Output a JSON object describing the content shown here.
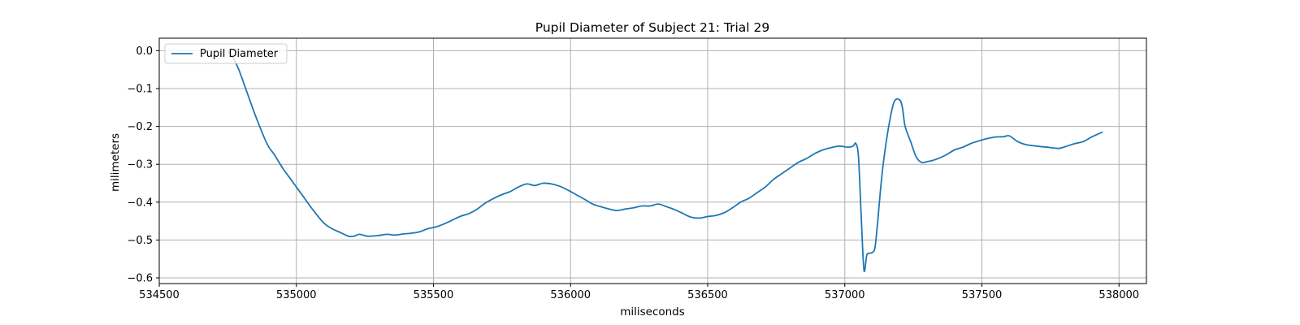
{
  "chart_data": {
    "type": "line",
    "title": "Pupil Diameter of Subject 21: Trial 29",
    "xlabel": "miliseconds",
    "ylabel": "milimeters",
    "xlim": [
      534500,
      538100
    ],
    "ylim": [
      -0.615,
      0.033
    ],
    "xticks": [
      534500,
      535000,
      535500,
      536000,
      536500,
      537000,
      537500,
      538000
    ],
    "yticks": [
      0.0,
      -0.1,
      -0.2,
      -0.3,
      -0.4,
      -0.5,
      -0.6
    ],
    "ytick_labels": [
      "0.0",
      "−0.1",
      "−0.2",
      "−0.3",
      "−0.4",
      "−0.5",
      "−0.6"
    ],
    "grid": true,
    "legend_position": "top-left",
    "series": [
      {
        "name": "Pupil Diameter",
        "color": "#1f77b4",
        "x": [
          534750,
          534770,
          534790,
          534820,
          534850,
          534880,
          534900,
          534920,
          534950,
          534980,
          535000,
          535030,
          535060,
          535100,
          535130,
          535160,
          535190,
          535210,
          535230,
          535260,
          535300,
          535330,
          535360,
          535390,
          535420,
          535450,
          535480,
          535510,
          535540,
          535570,
          535600,
          535630,
          535660,
          535690,
          535720,
          535750,
          535780,
          535810,
          535840,
          535870,
          535900,
          535930,
          535960,
          535990,
          536020,
          536050,
          536080,
          536110,
          536140,
          536170,
          536200,
          536230,
          536260,
          536290,
          536320,
          536350,
          536380,
          536410,
          536440,
          536470,
          536500,
          536530,
          536560,
          536590,
          536620,
          536650,
          536680,
          536710,
          536740,
          536770,
          536800,
          536830,
          536860,
          536890,
          536920,
          536950,
          536980,
          537010,
          537030,
          537040,
          537050,
          537060,
          537070,
          537080,
          537090,
          537100,
          537110,
          537120,
          537130,
          537140,
          537160,
          537180,
          537200,
          537210,
          537220,
          537240,
          537260,
          537280,
          537300,
          537320,
          537340,
          537370,
          537400,
          537430,
          537460,
          537490,
          537520,
          537550,
          537580,
          537600,
          537630,
          537660,
          537700,
          537740,
          537780,
          537810,
          537840,
          537870,
          537900,
          537940
        ],
        "y": [
          0.0,
          -0.02,
          -0.05,
          -0.11,
          -0.17,
          -0.225,
          -0.255,
          -0.275,
          -0.31,
          -0.34,
          -0.36,
          -0.39,
          -0.42,
          -0.455,
          -0.47,
          -0.48,
          -0.49,
          -0.49,
          -0.485,
          -0.49,
          -0.488,
          -0.485,
          -0.487,
          -0.484,
          -0.482,
          -0.478,
          -0.47,
          -0.465,
          -0.457,
          -0.447,
          -0.437,
          -0.43,
          -0.418,
          -0.402,
          -0.39,
          -0.38,
          -0.372,
          -0.36,
          -0.352,
          -0.356,
          -0.35,
          -0.352,
          -0.358,
          -0.368,
          -0.38,
          -0.392,
          -0.405,
          -0.412,
          -0.418,
          -0.422,
          -0.418,
          -0.415,
          -0.41,
          -0.41,
          -0.405,
          -0.412,
          -0.42,
          -0.43,
          -0.44,
          -0.442,
          -0.438,
          -0.435,
          -0.428,
          -0.415,
          -0.4,
          -0.39,
          -0.375,
          -0.36,
          -0.34,
          -0.325,
          -0.31,
          -0.295,
          -0.285,
          -0.272,
          -0.262,
          -0.256,
          -0.252,
          -0.255,
          -0.252,
          -0.245,
          -0.28,
          -0.44,
          -0.58,
          -0.54,
          -0.535,
          -0.533,
          -0.52,
          -0.45,
          -0.37,
          -0.3,
          -0.2,
          -0.135,
          -0.13,
          -0.15,
          -0.2,
          -0.24,
          -0.28,
          -0.295,
          -0.293,
          -0.29,
          -0.285,
          -0.275,
          -0.262,
          -0.255,
          -0.245,
          -0.238,
          -0.232,
          -0.228,
          -0.227,
          -0.225,
          -0.24,
          -0.248,
          -0.252,
          -0.255,
          -0.258,
          -0.252,
          -0.245,
          -0.24,
          -0.228,
          -0.215
        ]
      }
    ]
  }
}
